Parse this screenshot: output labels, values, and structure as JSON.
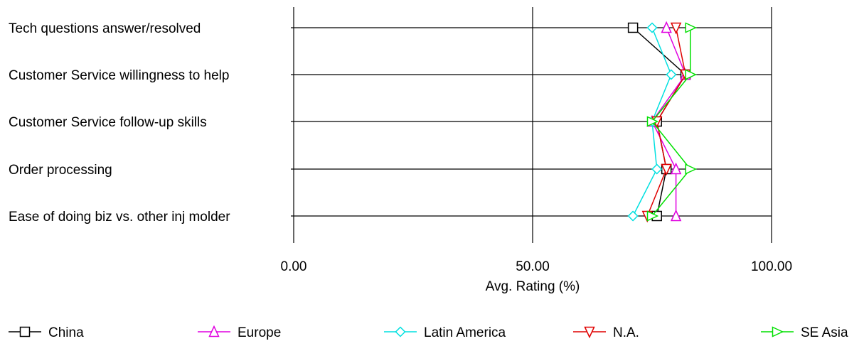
{
  "chart_data": {
    "type": "line",
    "orientation": "horizontal",
    "categories": [
      "Tech questions answer/resolved",
      "Customer Service willingness to help",
      "Customer Service follow-up skills",
      "Order processing",
      "Ease of doing biz vs. other inj molder"
    ],
    "xlabel": "Avg. Rating (%)",
    "xlim": [
      0,
      100
    ],
    "xticks": [
      "0.00",
      "50.00",
      "100.00"
    ],
    "grid": "horizontal lines per category, vertical line at 50",
    "legend_position": "bottom",
    "series": [
      {
        "name": "China",
        "color": "#000000",
        "marker": "square",
        "values": [
          71,
          82,
          76,
          78,
          76
        ]
      },
      {
        "name": "Europe",
        "color": "#e000e0",
        "marker": "triangle-up",
        "values": [
          78,
          82,
          75,
          80,
          80
        ]
      },
      {
        "name": "Latin America",
        "color": "#00e0e0",
        "marker": "diamond",
        "values": [
          75,
          79,
          75,
          76,
          71
        ]
      },
      {
        "name": "N.A.",
        "color": "#e00000",
        "marker": "triangle-down",
        "values": [
          80,
          82,
          76,
          78,
          74
        ]
      },
      {
        "name": "SE Asia",
        "color": "#00e000",
        "marker": "triangle-right",
        "values": [
          83,
          83,
          75,
          83,
          75
        ]
      }
    ]
  }
}
